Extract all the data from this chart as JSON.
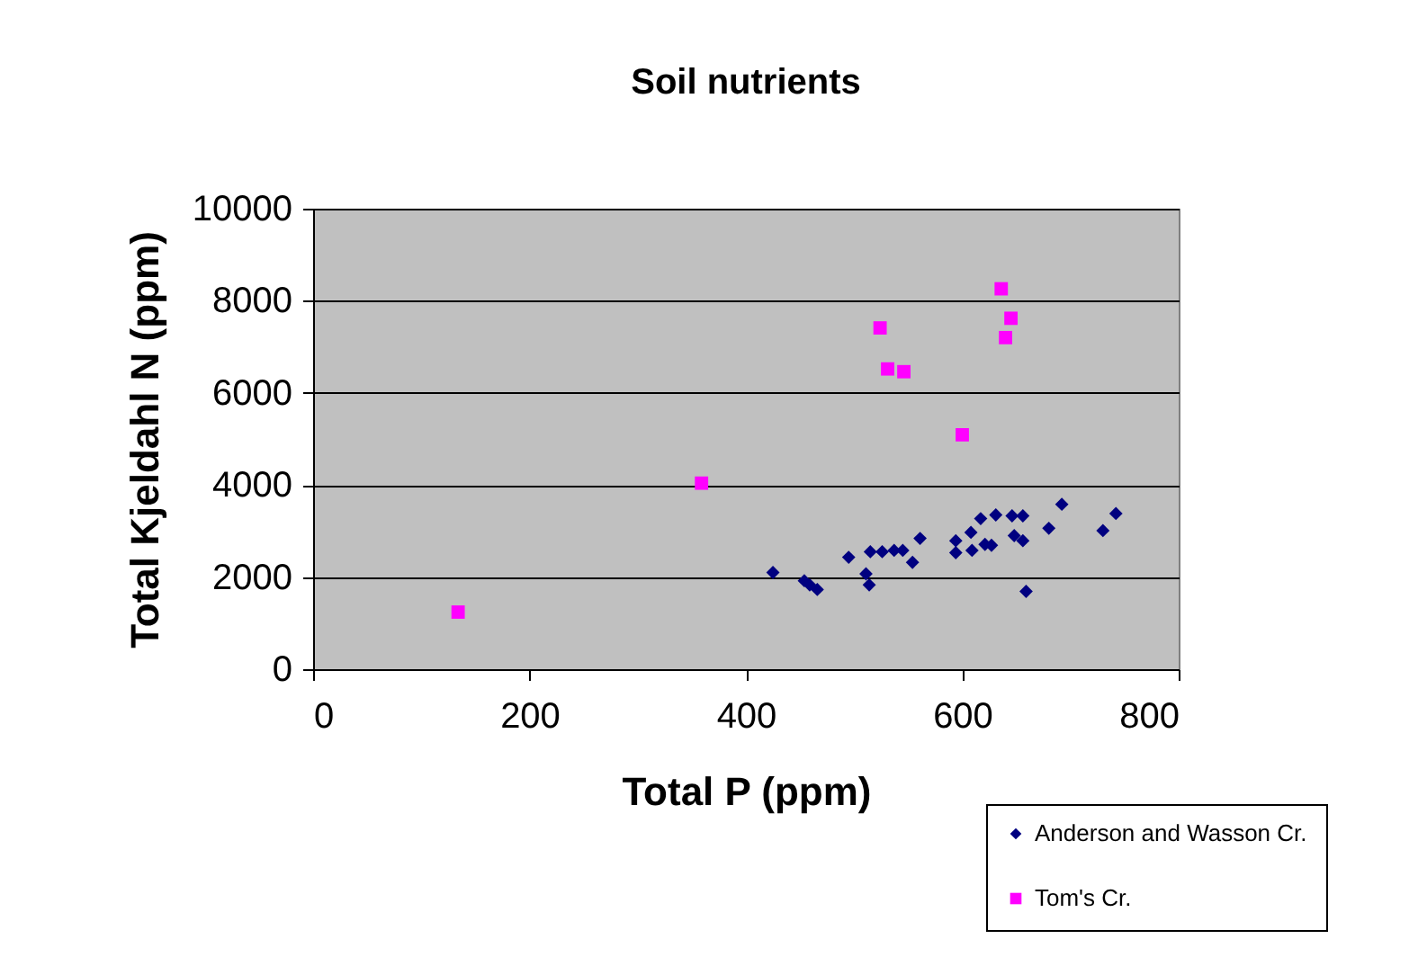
{
  "chart_data": {
    "type": "scatter",
    "title": "Soil nutrients",
    "xlabel": "Total P (ppm)",
    "ylabel": "Total Kjeldahl N (ppm)",
    "xlim": [
      0,
      800
    ],
    "xticks": [
      0,
      200,
      400,
      600,
      800
    ],
    "ylim": [
      0,
      10000
    ],
    "yticks": [
      0,
      2000,
      4000,
      6000,
      8000,
      10000
    ],
    "grid": "y",
    "legend": "bottom right",
    "series": [
      {
        "name": "Anderson and Wasson Cr.",
        "color": "#000080",
        "marker": "diamond",
        "x": [
          425,
          454,
          459,
          466,
          495,
          511,
          514,
          515,
          526,
          537,
          545,
          554,
          561,
          594,
          594,
          608,
          609,
          617,
          621,
          627,
          631,
          646,
          656,
          648,
          656,
          659,
          680,
          692,
          730,
          742
        ],
        "values": [
          2100,
          1920,
          1830,
          1730,
          2430,
          2070,
          1830,
          2550,
          2550,
          2580,
          2580,
          2320,
          2840,
          2790,
          2530,
          2970,
          2580,
          3270,
          2710,
          2690,
          3350,
          3330,
          3330,
          2900,
          2790,
          1690,
          3060,
          3580,
          3010,
          3380
        ]
      },
      {
        "name": "Tom's Cr.",
        "color": "#ff00ff",
        "marker": "square",
        "x": [
          134,
          359,
          524,
          531,
          546,
          600,
          636,
          645,
          640
        ],
        "values": [
          1240,
          4040,
          7410,
          6520,
          6460,
          5090,
          8260,
          7620,
          7200
        ]
      }
    ]
  }
}
